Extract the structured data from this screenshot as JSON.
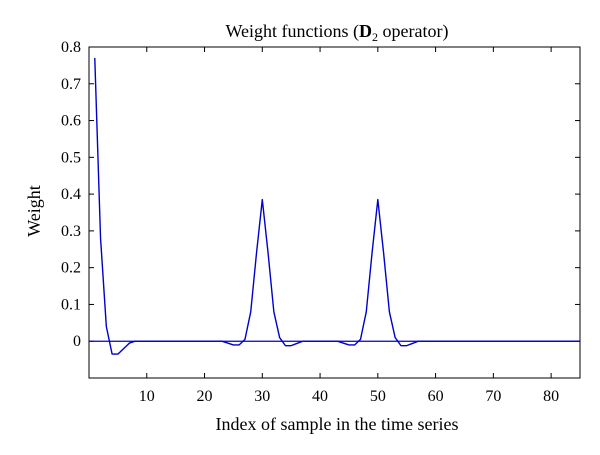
{
  "chart_data": {
    "type": "line",
    "title": {
      "prefix": "Weight functions (",
      "bold": "D",
      "subscript": "2",
      "suffix": " operator)"
    },
    "xlabel": "Index of sample in the time series",
    "ylabel": "Weight",
    "xlim": [
      0,
      85
    ],
    "ylim": [
      -0.1,
      0.8
    ],
    "xticks": [
      10,
      20,
      30,
      40,
      50,
      60,
      70,
      80
    ],
    "yticks": [
      0,
      0.1,
      0.2,
      0.3,
      0.4,
      0.5,
      0.6,
      0.7,
      0.8
    ],
    "grid": false,
    "colors": {
      "series": "#0000cc",
      "frame": "#000000"
    },
    "series": [
      {
        "x": [
          1,
          2,
          3,
          4,
          5,
          6,
          7,
          8,
          9,
          10,
          11,
          12,
          13,
          14,
          15,
          16,
          17,
          18,
          19,
          20,
          21,
          22,
          23,
          24,
          25,
          26,
          27,
          28,
          29,
          30,
          31,
          32,
          33,
          34,
          35,
          36,
          37,
          38,
          39,
          40,
          41,
          42,
          43,
          44,
          45,
          46,
          47,
          48,
          49,
          50,
          51,
          52,
          53,
          54,
          55,
          56,
          57,
          58,
          59,
          60,
          61,
          62,
          63,
          64,
          65,
          66,
          67,
          68,
          69,
          70,
          71,
          72,
          73,
          74,
          75,
          76,
          77,
          78,
          79,
          80,
          81,
          82,
          83,
          84,
          85
        ],
        "y": [
          0.77,
          0.28,
          0.04,
          -0.035,
          -0.035,
          -0.02,
          -0.005,
          0,
          0,
          0,
          0,
          0,
          0,
          0,
          0,
          0,
          0,
          0,
          0,
          0,
          0,
          0,
          0,
          -0.005,
          -0.01,
          -0.01,
          0.005,
          0.08,
          0.24,
          0.385,
          0.24,
          0.08,
          0.01,
          -0.012,
          -0.012,
          -0.006,
          0,
          0,
          0,
          0,
          0,
          0,
          0,
          -0.005,
          -0.01,
          -0.01,
          0.005,
          0.08,
          0.24,
          0.385,
          0.24,
          0.08,
          0.01,
          -0.012,
          -0.012,
          -0.006,
          0,
          0,
          0,
          0,
          0,
          0,
          0,
          0,
          0,
          0,
          0,
          0,
          0,
          0,
          0,
          0,
          0,
          0,
          0,
          0,
          0,
          0,
          0,
          0,
          0,
          0,
          0,
          0,
          0
        ]
      }
    ]
  }
}
